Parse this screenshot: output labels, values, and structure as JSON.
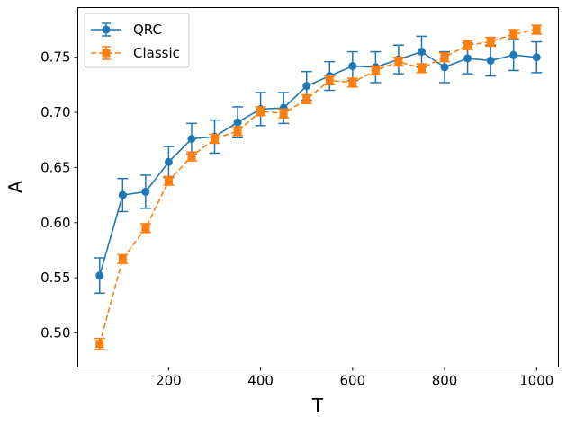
{
  "chart_data": {
    "type": "line",
    "title": "",
    "xlabel": "T",
    "ylabel": "A",
    "xlim": [
      2.5,
      1047.5
    ],
    "ylim": [
      0.469,
      0.795
    ],
    "grid": false,
    "legend_position": "top-left",
    "x": [
      50,
      100,
      150,
      200,
      250,
      300,
      350,
      400,
      450,
      500,
      550,
      600,
      650,
      700,
      750,
      800,
      850,
      900,
      950,
      1000
    ],
    "xticks": [
      200,
      400,
      600,
      800,
      1000
    ],
    "xtick_labels": [
      "200",
      "400",
      "600",
      "800",
      "1000"
    ],
    "yticks": [
      0.5,
      0.55,
      0.6,
      0.65,
      0.7,
      0.75
    ],
    "ytick_labels": [
      "0.50",
      "0.55",
      "0.60",
      "0.65",
      "0.70",
      "0.75"
    ],
    "series": [
      {
        "name": "QRC",
        "color": "#1f77b4",
        "marker": "circle",
        "linestyle": "solid",
        "values": [
          0.552,
          0.625,
          0.628,
          0.655,
          0.676,
          0.678,
          0.691,
          0.703,
          0.704,
          0.724,
          0.733,
          0.742,
          0.741,
          0.748,
          0.755,
          0.741,
          0.749,
          0.747,
          0.752,
          0.75
        ],
        "errors": [
          0.016,
          0.015,
          0.015,
          0.014,
          0.014,
          0.015,
          0.014,
          0.015,
          0.014,
          0.013,
          0.013,
          0.013,
          0.014,
          0.013,
          0.014,
          0.014,
          0.014,
          0.014,
          0.014,
          0.014
        ]
      },
      {
        "name": "Classic",
        "color": "#ff7f0e",
        "marker": "square",
        "linestyle": "dashed",
        "values": [
          0.49,
          0.567,
          0.595,
          0.638,
          0.66,
          0.676,
          0.683,
          0.701,
          0.699,
          0.712,
          0.729,
          0.727,
          0.738,
          0.746,
          0.74,
          0.75,
          0.761,
          0.764,
          0.771,
          0.775
        ],
        "errors": [
          0.005,
          0.004,
          0.004,
          0.004,
          0.004,
          0.004,
          0.004,
          0.004,
          0.004,
          0.004,
          0.004,
          0.004,
          0.004,
          0.004,
          0.004,
          0.004,
          0.004,
          0.004,
          0.004,
          0.004
        ]
      }
    ]
  }
}
